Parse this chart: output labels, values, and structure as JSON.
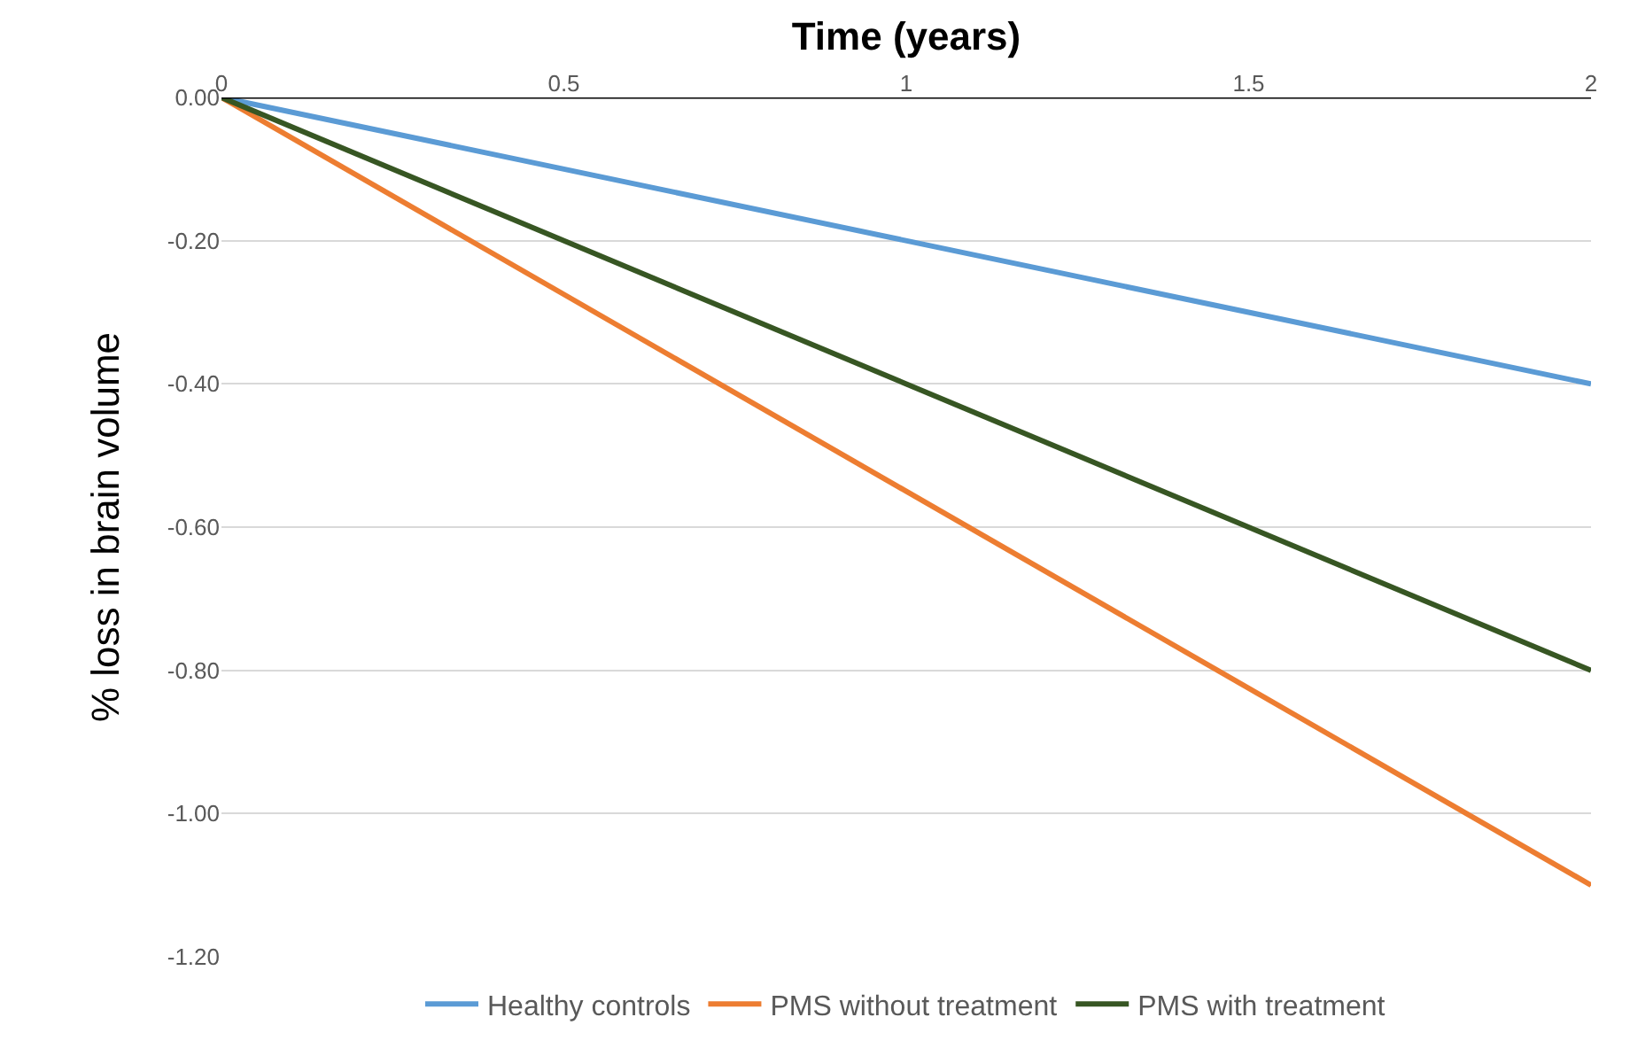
{
  "chart_data": {
    "type": "line",
    "xlabel": "Time (years)",
    "ylabel": "% loss in brain volume",
    "x": [
      0,
      2
    ],
    "series": [
      {
        "name": "Healthy controls",
        "color": "#5b9bd5",
        "values": [
          0,
          -0.4
        ]
      },
      {
        "name": "PMS without treatment",
        "color": "#ed7d31",
        "values": [
          0,
          -1.1
        ]
      },
      {
        "name": "PMS with treatment",
        "color": "#375623",
        "values": [
          0,
          -0.8
        ]
      }
    ],
    "xlim": [
      0,
      2
    ],
    "xticks": [
      0,
      0.5,
      1,
      1.5,
      2
    ],
    "ylim": [
      -1.2,
      0
    ],
    "yticks": [
      {
        "value": 0,
        "label": "0.00"
      },
      {
        "value": -0.2,
        "label": "-0.20"
      },
      {
        "value": -0.4,
        "label": "-0.40"
      },
      {
        "value": -0.6,
        "label": "-0.60"
      },
      {
        "value": -0.8,
        "label": "-0.80"
      },
      {
        "value": -1,
        "label": "-1.00"
      },
      {
        "value": -1.2,
        "label": "-1.20"
      }
    ],
    "grid": "y",
    "legend": "bottom",
    "line_style": "solid",
    "marker": "none"
  }
}
